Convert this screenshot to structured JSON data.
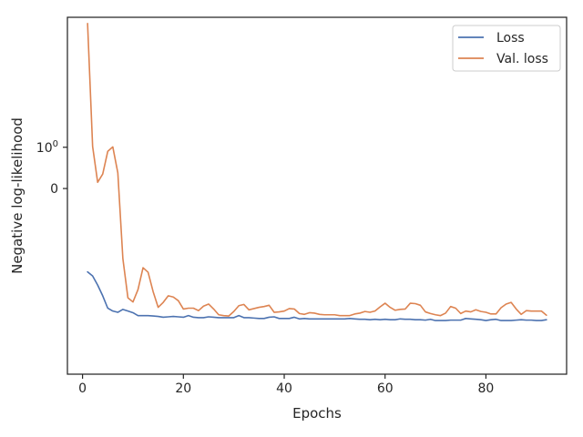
{
  "chart_data": {
    "type": "line",
    "xlabel": "Epochs",
    "ylabel": "Negative log-likelihood",
    "xlim": [
      -3,
      96
    ],
    "ylim": [
      -4.5,
      4.15
    ],
    "yscale": "symlog",
    "xticks": [
      {
        "value": 0,
        "label": "0"
      },
      {
        "value": 20,
        "label": "20"
      },
      {
        "value": 40,
        "label": "40"
      },
      {
        "value": 60,
        "label": "60"
      },
      {
        "value": 80,
        "label": "80"
      }
    ],
    "yticks": [
      {
        "value": 0,
        "label": "0"
      },
      {
        "value": 1,
        "label": "10",
        "sup": "0"
      }
    ],
    "grid": false,
    "legend_position": "top-right",
    "x": [
      1,
      2,
      3,
      4,
      5,
      6,
      7,
      8,
      9,
      10,
      11,
      12,
      13,
      14,
      15,
      16,
      17,
      18,
      19,
      20,
      21,
      22,
      23,
      24,
      25,
      26,
      27,
      28,
      29,
      30,
      31,
      32,
      33,
      34,
      35,
      36,
      37,
      38,
      39,
      40,
      41,
      42,
      43,
      44,
      45,
      46,
      47,
      48,
      49,
      50,
      51,
      52,
      53,
      54,
      55,
      56,
      57,
      58,
      59,
      60,
      61,
      62,
      63,
      64,
      65,
      66,
      67,
      68,
      69,
      70,
      71,
      72,
      73,
      74,
      75,
      76,
      77,
      78,
      79,
      80,
      81,
      82,
      83,
      84,
      85,
      86,
      87,
      88,
      89,
      90,
      91,
      92
    ],
    "series": [
      {
        "name": "Loss",
        "color": "#4c72b0",
        "values": [
          -2.02,
          -2.12,
          -2.34,
          -2.6,
          -2.9,
          -2.97,
          -3.0,
          -2.93,
          -2.97,
          -3.01,
          -3.08,
          -3.08,
          -3.08,
          -3.09,
          -3.1,
          -3.12,
          -3.11,
          -3.1,
          -3.11,
          -3.12,
          -3.08,
          -3.12,
          -3.13,
          -3.13,
          -3.11,
          -3.12,
          -3.13,
          -3.13,
          -3.13,
          -3.13,
          -3.08,
          -3.13,
          -3.13,
          -3.14,
          -3.15,
          -3.15,
          -3.12,
          -3.11,
          -3.15,
          -3.15,
          -3.15,
          -3.12,
          -3.16,
          -3.15,
          -3.16,
          -3.16,
          -3.16,
          -3.16,
          -3.16,
          -3.16,
          -3.16,
          -3.16,
          -3.15,
          -3.16,
          -3.17,
          -3.17,
          -3.18,
          -3.17,
          -3.18,
          -3.17,
          -3.18,
          -3.18,
          -3.16,
          -3.17,
          -3.17,
          -3.18,
          -3.18,
          -3.19,
          -3.17,
          -3.2,
          -3.2,
          -3.2,
          -3.19,
          -3.19,
          -3.19,
          -3.15,
          -3.16,
          -3.17,
          -3.18,
          -3.2,
          -3.18,
          -3.17,
          -3.2,
          -3.2,
          -3.2,
          -3.19,
          -3.18,
          -3.19,
          -3.19,
          -3.2,
          -3.2,
          -3.18
        ]
      },
      {
        "name": "Val. loss",
        "color": "#dd8452",
        "values": [
          4.0,
          1.02,
          0.15,
          0.35,
          0.9,
          1.01,
          0.38,
          -1.7,
          -2.65,
          -2.75,
          -2.45,
          -1.92,
          -2.03,
          -2.5,
          -2.88,
          -2.76,
          -2.6,
          -2.63,
          -2.72,
          -2.92,
          -2.9,
          -2.9,
          -2.96,
          -2.85,
          -2.8,
          -2.92,
          -3.06,
          -3.08,
          -3.09,
          -2.98,
          -2.84,
          -2.81,
          -2.94,
          -2.91,
          -2.88,
          -2.86,
          -2.83,
          -3.0,
          -2.99,
          -2.97,
          -2.91,
          -2.92,
          -3.03,
          -3.05,
          -3.01,
          -3.02,
          -3.05,
          -3.06,
          -3.06,
          -3.06,
          -3.08,
          -3.08,
          -3.08,
          -3.04,
          -3.02,
          -2.98,
          -3.0,
          -2.97,
          -2.87,
          -2.78,
          -2.88,
          -2.95,
          -2.93,
          -2.92,
          -2.78,
          -2.79,
          -2.83,
          -2.99,
          -3.03,
          -3.06,
          -3.08,
          -3.02,
          -2.86,
          -2.9,
          -3.03,
          -2.97,
          -2.99,
          -2.94,
          -2.98,
          -3.0,
          -3.04,
          -3.04,
          -2.89,
          -2.8,
          -2.76,
          -2.92,
          -3.05,
          -2.96,
          -2.97,
          -2.97,
          -2.97,
          -3.07
        ]
      }
    ]
  }
}
